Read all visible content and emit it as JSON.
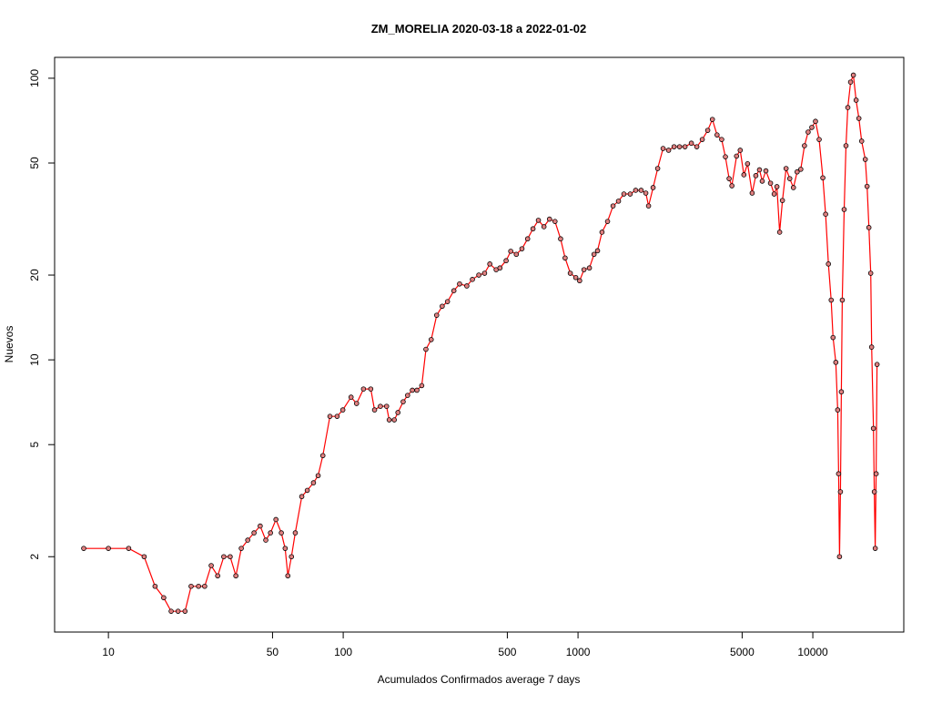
{
  "chart_data": {
    "type": "line",
    "title": "ZM_MORELIA 2020-03-18 a 2022-01-02",
    "x_label": "Acumulados Confirmados average  7  days",
    "y_label": "Nuevos",
    "log_x": true,
    "log_y": true,
    "xlim": [
      5.9,
      24400
    ],
    "ylim": [
      1.08,
      118.6
    ],
    "xticks": [
      10,
      50,
      100,
      500,
      1000,
      5000,
      10000
    ],
    "yticks": [
      2,
      5,
      10,
      20,
      50,
      100
    ],
    "line_color": "#ff0000",
    "marker_edge": "#000000",
    "marker_fill": "#e08080",
    "x": [
      7.85,
      10,
      12.2,
      14.2,
      15.8,
      17.2,
      18.5,
      19.8,
      21.2,
      22.5,
      24.2,
      25.7,
      27.4,
      29.2,
      31,
      33,
      34.9,
      36.8,
      39.2,
      41.7,
      44.3,
      46.8,
      49,
      51.7,
      54.5,
      56.6,
      58.1,
      60.2,
      62.5,
      66.6,
      70.3,
      74.7,
      78.2,
      81.9,
      87.8,
      94.2,
      99.6,
      108,
      114,
      122,
      131,
      136,
      144,
      153,
      157,
      165,
      171,
      180,
      188,
      197,
      206,
      216,
      225,
      237,
      250,
      264,
      278,
      296,
      313,
      336,
      355,
      378,
      400,
      421,
      448,
      465,
      494,
      517,
      546,
      577,
      610,
      643,
      678,
      716,
      756,
      798,
      843,
      881,
      927,
      978,
      1016,
      1060,
      1118,
      1170,
      1211,
      1265,
      1336,
      1410,
      1487,
      1568,
      1668,
      1760,
      1857,
      1944,
      1997,
      2088,
      2184,
      2303,
      2431,
      2565,
      2706,
      2855,
      3038,
      3205,
      3382,
      3568,
      3735,
      3909,
      4092,
      4244,
      4400,
      4522,
      4733,
      4906,
      5086,
      5273,
      5516,
      5718,
      5928,
      6089,
      6312,
      6603,
      6845,
      7032,
      7224,
      7422,
      7694,
      7976,
      8269,
      8573,
      8887,
      9213,
      9551,
      9902,
      10265,
      10642,
      11032,
      11337,
      11651,
      11974,
      12193,
      12530,
      12760,
      12876,
      12993,
      13111,
      13230,
      13350,
      13594,
      13843,
      14096,
      14483,
      14882,
      15291,
      15711,
      16143,
      16727,
      17025,
      17330,
      17641,
      17800,
      18119,
      18280,
      18443,
      18608,
      18775
    ],
    "values": [
      2.14,
      2.14,
      2.14,
      2,
      1.57,
      1.43,
      1.28,
      1.28,
      1.28,
      1.57,
      1.57,
      1.57,
      1.86,
      1.71,
      2,
      2,
      1.71,
      2.14,
      2.29,
      2.43,
      2.57,
      2.29,
      2.43,
      2.71,
      2.43,
      2.14,
      1.71,
      2,
      2.43,
      3.27,
      3.44,
      3.66,
      3.88,
      4.57,
      6.3,
      6.3,
      6.64,
      7.37,
      7,
      7.88,
      7.88,
      6.64,
      6.84,
      6.84,
      6.12,
      6.12,
      6.5,
      7.1,
      7.48,
      7.8,
      7.8,
      8.1,
      10.9,
      11.8,
      14.4,
      15.5,
      16.1,
      17.6,
      18.6,
      18.3,
      19.3,
      20,
      20.3,
      21.9,
      20.9,
      21.2,
      22.5,
      24.3,
      23.7,
      24.8,
      26.9,
      29.2,
      31.3,
      29.7,
      31.6,
      31,
      26.9,
      23,
      20.3,
      19.6,
      19.1,
      20.9,
      21.2,
      23.7,
      24.4,
      28.4,
      31,
      35.2,
      36.6,
      38.8,
      38.8,
      40,
      40,
      39.1,
      35.2,
      40.9,
      47.8,
      56.3,
      55.5,
      57.1,
      57.1,
      57.1,
      58.8,
      57.1,
      60.6,
      65.3,
      71.4,
      62.9,
      60.6,
      52.6,
      44,
      41.5,
      52.9,
      55.5,
      45.4,
      49.7,
      39.1,
      45.1,
      47.3,
      43.1,
      46.9,
      42.4,
      38.8,
      41.2,
      28.4,
      36.8,
      47.8,
      44,
      40.9,
      46.5,
      47.5,
      57.6,
      64.4,
      66.9,
      70.3,
      60.6,
      44.3,
      32.9,
      21.9,
      16.3,
      12,
      9.8,
      6.64,
      3.94,
      2,
      3.4,
      7.7,
      16.3,
      34.2,
      57.6,
      78.7,
      96.9,
      102.6,
      83.6,
      72,
      59.8,
      51.5,
      41.3,
      29.5,
      20.3,
      11.1,
      5.71,
      3.4,
      2.14,
      3.94,
      9.63
    ]
  }
}
